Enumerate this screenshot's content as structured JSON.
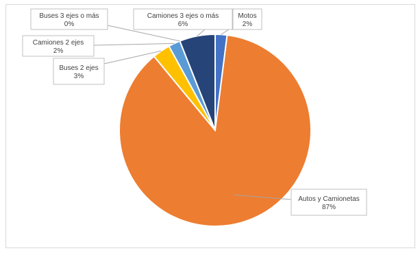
{
  "chart_data": {
    "type": "pie",
    "title": "",
    "legend": "none",
    "start_angle_deg": 0,
    "direction": "clockwise",
    "slices": [
      {
        "name": "Motos",
        "value": 2,
        "label": "2%",
        "color": "#4472c4"
      },
      {
        "name": "Autos y Camionetas",
        "value": 87,
        "label": "87%",
        "color": "#ed7d31"
      },
      {
        "name": "Buses 2 ejes",
        "value": 3,
        "label": "3%",
        "color": "#ffc000"
      },
      {
        "name": "Camiones 2 ejes",
        "value": 2,
        "label": "2%",
        "color": "#5b9bd5"
      },
      {
        "name": "Buses 3 ejes o más",
        "value": 0,
        "label": "0%",
        "color": "#a5a5a5"
      },
      {
        "name": "Camiones 3 ejes o más",
        "value": 6,
        "label": "6%",
        "color": "#264478"
      }
    ]
  }
}
